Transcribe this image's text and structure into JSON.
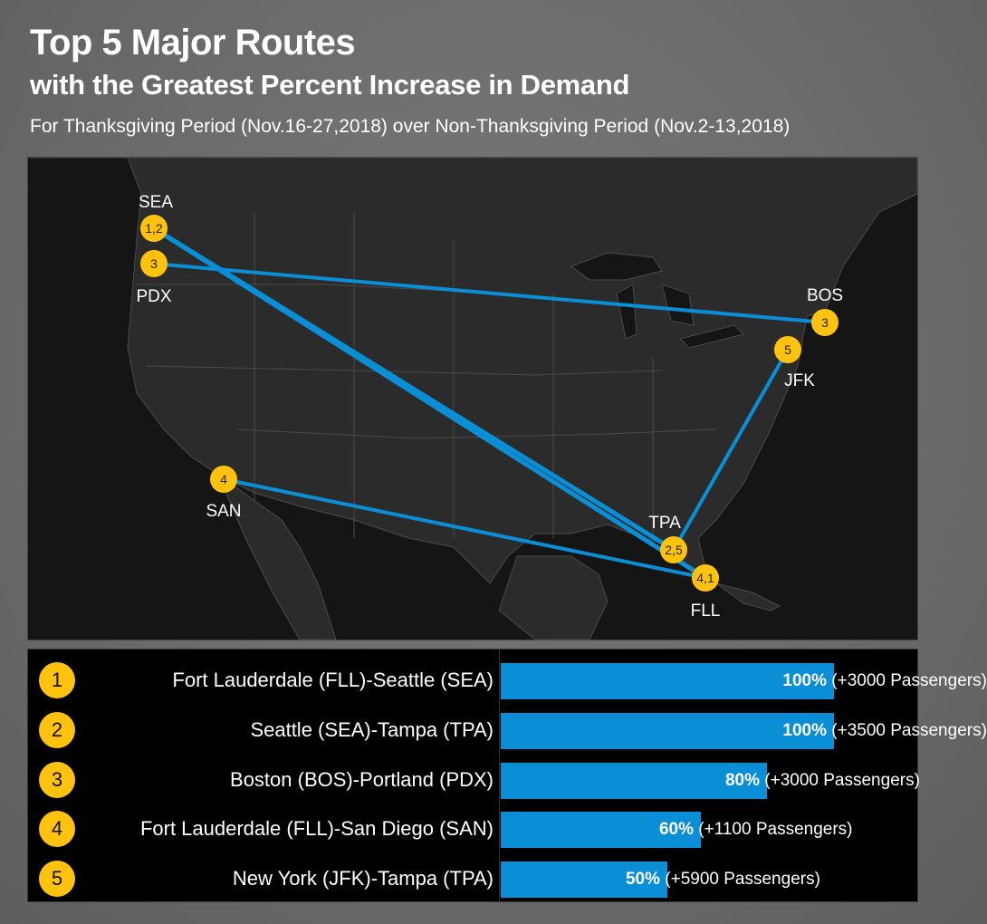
{
  "header": {
    "title": "Top 5 Major Routes",
    "subtitle": "with the Greatest Percent Increase in Demand",
    "period": "For Thanksgiving Period (Nov.16-27,2018) over Non-Thanksgiving Period (Nov.2-13,2018)"
  },
  "colors": {
    "route_line": "#0a8fd6",
    "marker": "#ffc20e",
    "bar": "#0a8fd6",
    "map_bg": "#151515"
  },
  "map": {
    "airports": [
      {
        "code": "SEA",
        "marker": "1,2"
      },
      {
        "code": "PDX",
        "marker": "3"
      },
      {
        "code": "BOS",
        "marker": "3"
      },
      {
        "code": "JFK",
        "marker": "5"
      },
      {
        "code": "SAN",
        "marker": "4"
      },
      {
        "code": "TPA",
        "marker": "2,5"
      },
      {
        "code": "FLL",
        "marker": "4,1"
      }
    ]
  },
  "chart_data": {
    "type": "bar",
    "orientation": "horizontal",
    "categories": [
      "Fort Lauderdale (FLL)-Seattle (SEA)",
      "Seattle (SEA)-Tampa (TPA)",
      "Boston (BOS)-Portland (PDX)",
      "Fort Lauderdale (FLL)-San Diego (SAN)",
      "New York (JFK)-Tampa (TPA)"
    ],
    "ranks": [
      "1",
      "2",
      "3",
      "4",
      "5"
    ],
    "values": [
      100,
      100,
      80,
      60,
      50
    ],
    "value_labels": [
      "100%",
      "100%",
      "80%",
      "60%",
      "50%"
    ],
    "passenger_labels": [
      "(+3000 Passengers)",
      "(+3500 Passengers)",
      "(+3000 Passengers)",
      "(+1100 Passengers)",
      "(+5900 Passengers)"
    ],
    "xlim": [
      0,
      100
    ]
  }
}
